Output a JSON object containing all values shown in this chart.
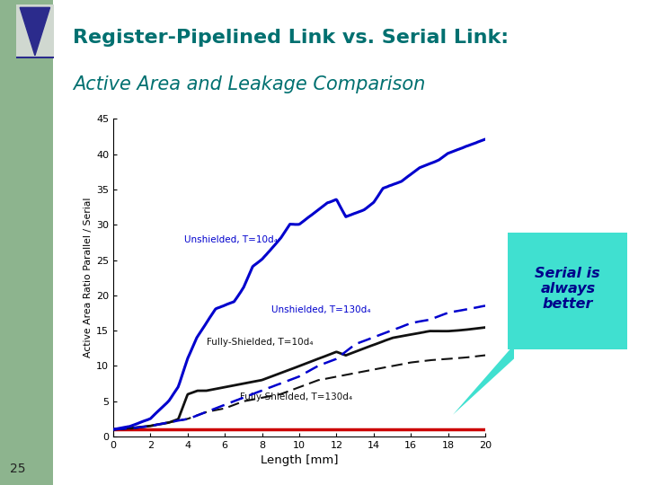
{
  "title_line1": "Register-Pipelined Link vs. Serial Link:",
  "title_line2": "Active Area and Leakage Comparison",
  "xlabel": "Length [mm]",
  "ylabel": "Active Area Ratio Parallel / Serial",
  "xlim": [
    0,
    20
  ],
  "ylim": [
    0,
    45
  ],
  "yticks": [
    0,
    5,
    10,
    15,
    20,
    25,
    30,
    35,
    40,
    45
  ],
  "xticks": [
    0,
    2,
    4,
    6,
    8,
    10,
    12,
    14,
    16,
    18,
    20
  ],
  "background_color": "#ffffff",
  "green_sidebar": "#8db48e",
  "title_color": "#007070",
  "annotation_bg": "#40e0d0",
  "annotation_text": "Serial is\nalways\nbetter",
  "annotation_color": "#00008b",
  "serial_line_color": "#cc0000",
  "label_unshielded_10": "Unshielded, T=10d₄",
  "label_unshielded_130": "Unshielded, T=130d₄",
  "label_shielded_10": "Fully-Shielded, T=10d₄",
  "label_shielded_130": "Fully-Shielded, T=130d₄",
  "slide_number": "25",
  "blue_color": "#0000cd",
  "black_color": "#111111"
}
